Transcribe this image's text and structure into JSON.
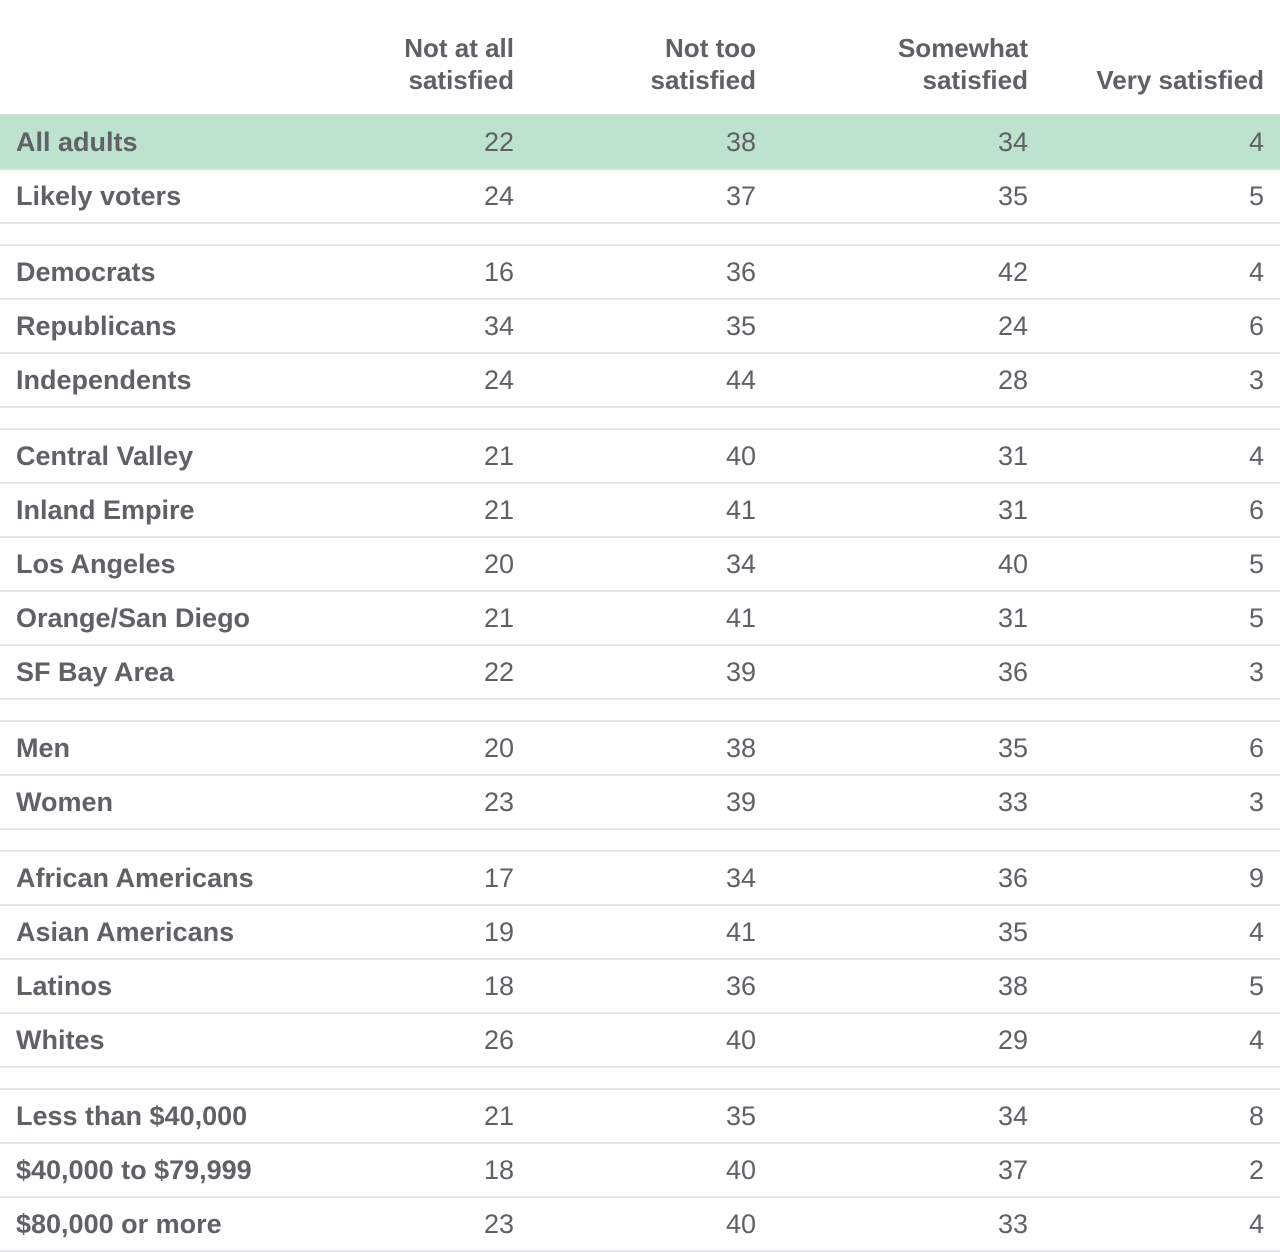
{
  "chart_data": {
    "type": "table",
    "columns": [
      "",
      "Not at all\nsatisfied",
      "Not too\nsatisfied",
      "Somewhat\nsatisfied",
      "Very satisfied"
    ],
    "groups": [
      [
        {
          "label": "All adults",
          "values": [
            22,
            38,
            34,
            4
          ],
          "highlight": true
        },
        {
          "label": "Likely voters",
          "values": [
            24,
            37,
            35,
            5
          ]
        }
      ],
      [
        {
          "label": "Democrats",
          "values": [
            16,
            36,
            42,
            4
          ]
        },
        {
          "label": "Republicans",
          "values": [
            34,
            35,
            24,
            6
          ]
        },
        {
          "label": "Independents",
          "values": [
            24,
            44,
            28,
            3
          ]
        }
      ],
      [
        {
          "label": "Central Valley",
          "values": [
            21,
            40,
            31,
            4
          ]
        },
        {
          "label": "Inland Empire",
          "values": [
            21,
            41,
            31,
            6
          ]
        },
        {
          "label": "Los Angeles",
          "values": [
            20,
            34,
            40,
            5
          ]
        },
        {
          "label": "Orange/San Diego",
          "values": [
            21,
            41,
            31,
            5
          ]
        },
        {
          "label": "SF Bay Area",
          "values": [
            22,
            39,
            36,
            3
          ]
        }
      ],
      [
        {
          "label": "Men",
          "values": [
            20,
            38,
            35,
            6
          ]
        },
        {
          "label": "Women",
          "values": [
            23,
            39,
            33,
            3
          ]
        }
      ],
      [
        {
          "label": "African Americans",
          "values": [
            17,
            34,
            36,
            9
          ]
        },
        {
          "label": "Asian Americans",
          "values": [
            19,
            41,
            35,
            4
          ]
        },
        {
          "label": "Latinos",
          "values": [
            18,
            36,
            38,
            5
          ]
        },
        {
          "label": "Whites",
          "values": [
            26,
            40,
            29,
            4
          ]
        }
      ],
      [
        {
          "label": "Less than $40,000",
          "values": [
            21,
            35,
            34,
            8
          ]
        },
        {
          "label": "$40,000 to $79,999",
          "values": [
            18,
            40,
            37,
            2
          ]
        },
        {
          "label": "$80,000 or more",
          "values": [
            23,
            40,
            33,
            4
          ]
        }
      ]
    ],
    "colors": {
      "highlight_row": "#bde3cf",
      "text": "#5f6166",
      "rule": "#e6e7e9"
    }
  }
}
